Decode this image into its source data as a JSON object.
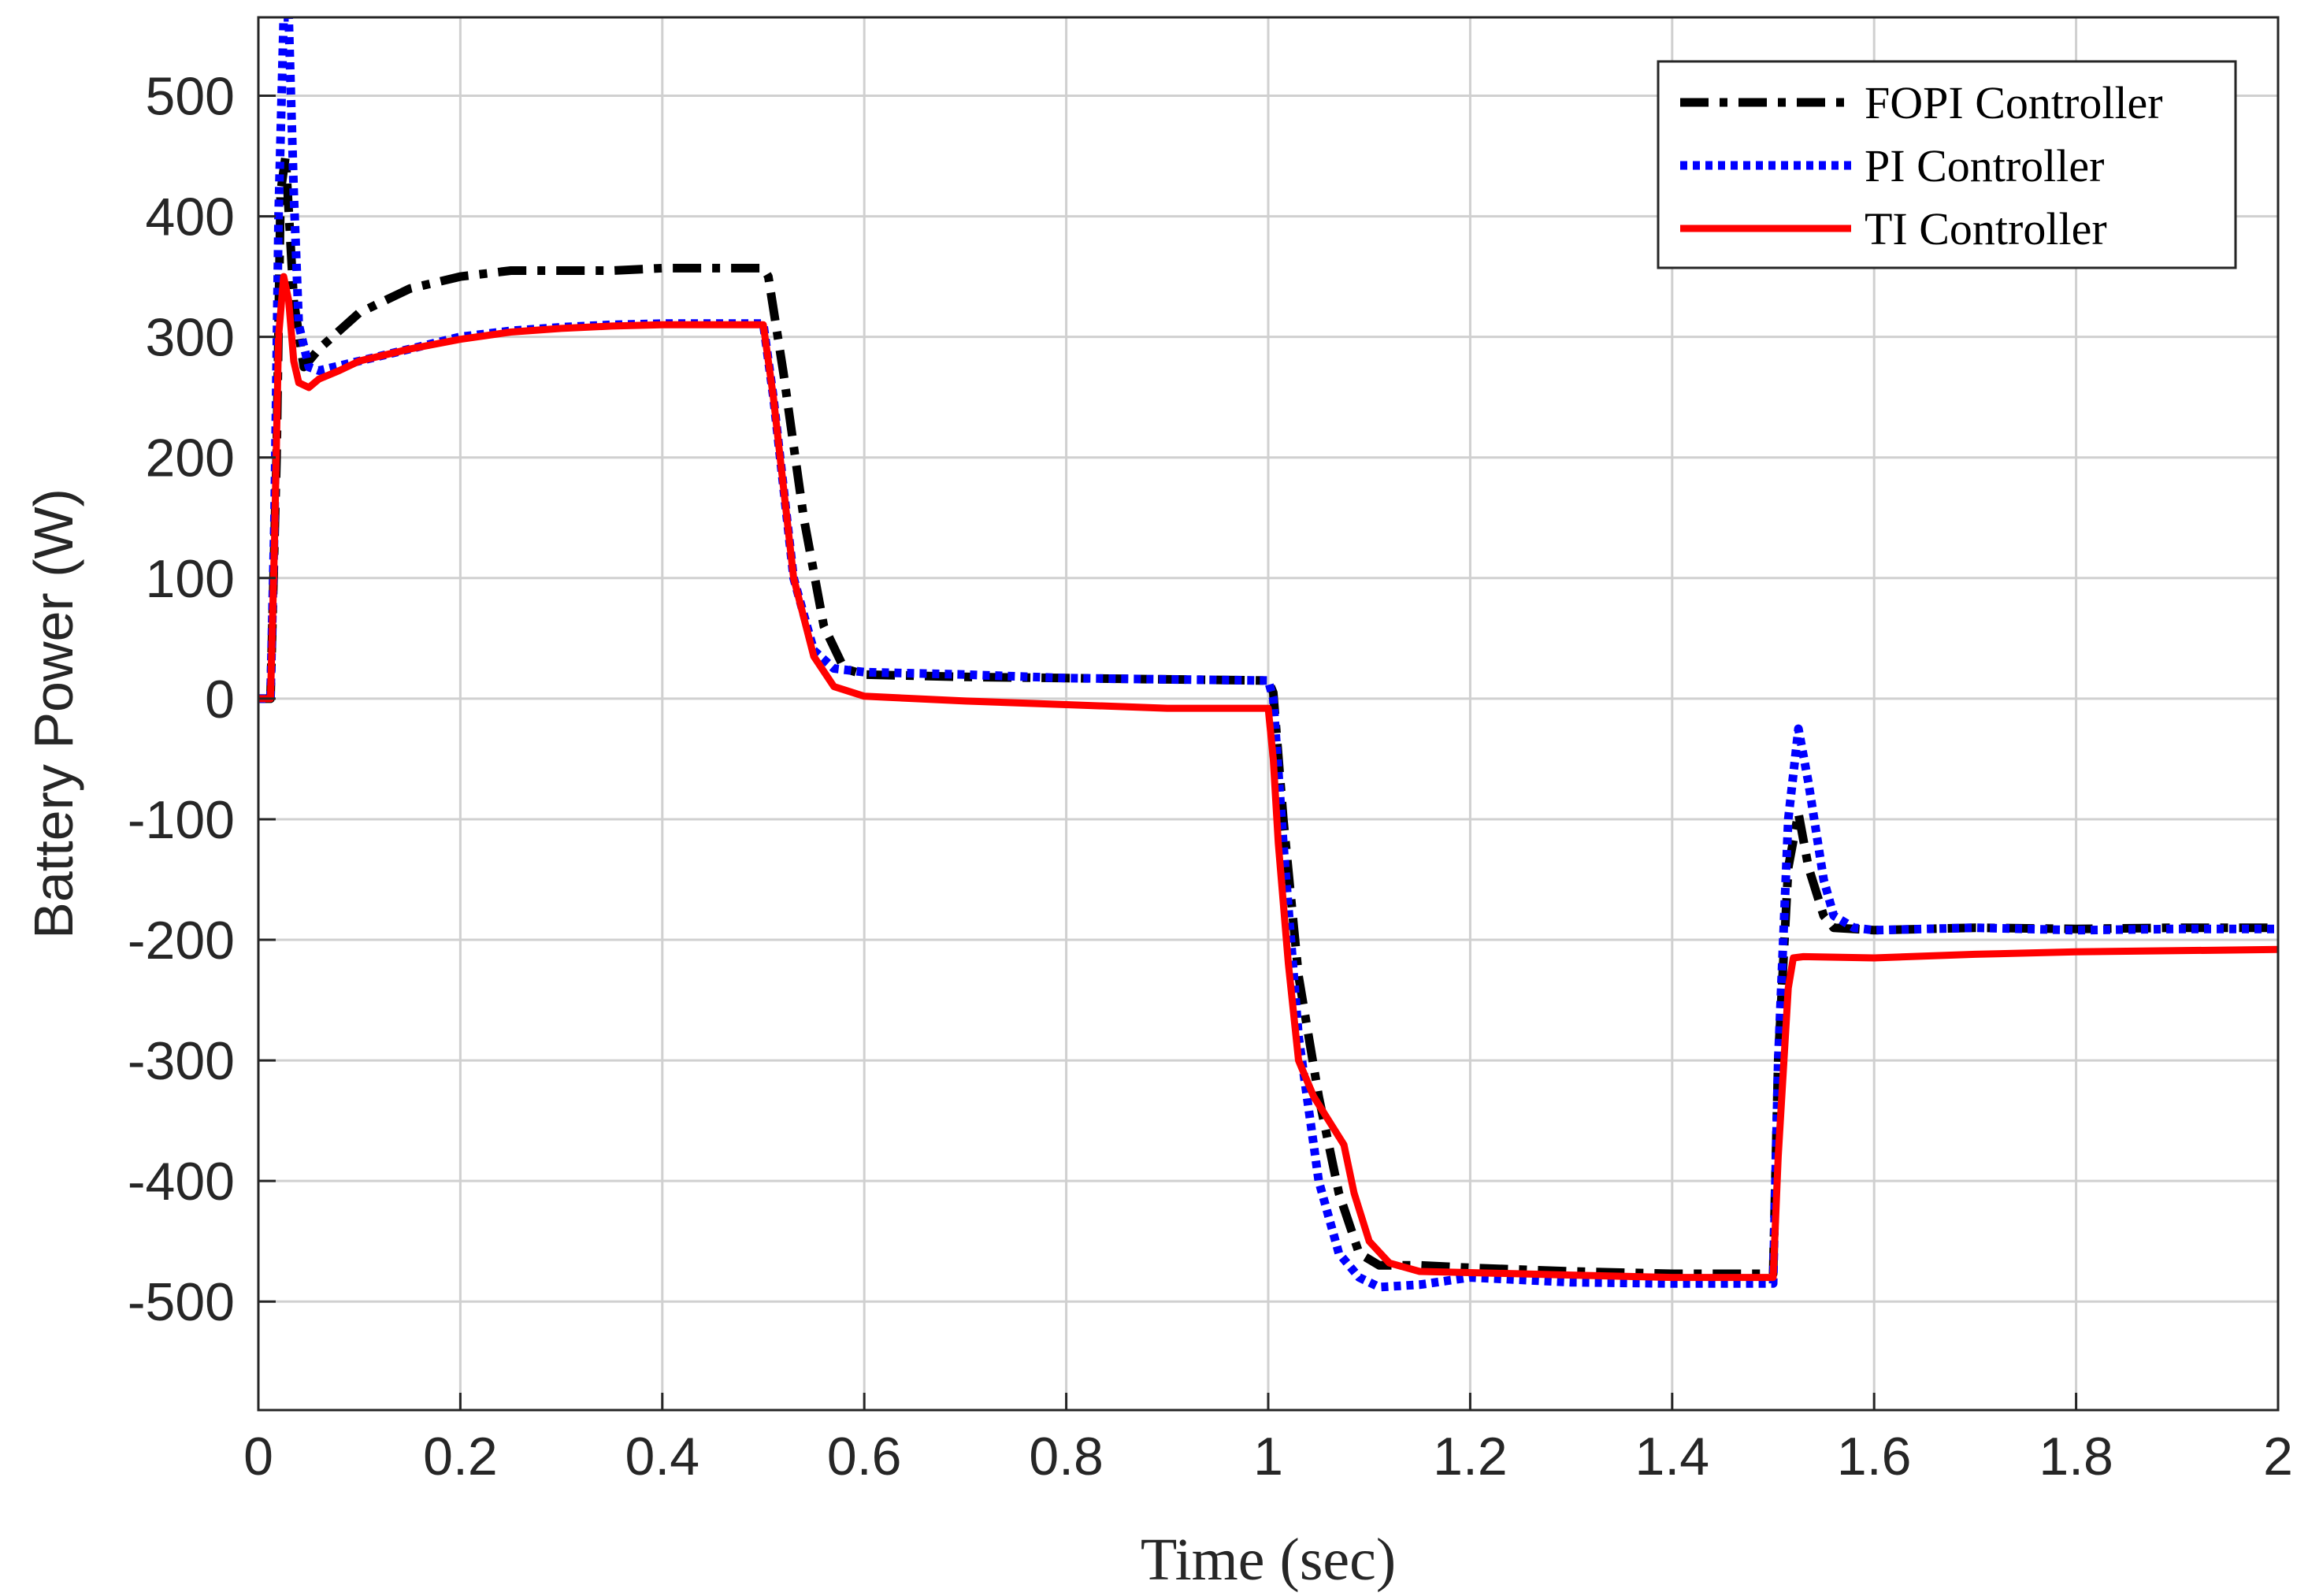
{
  "chart_data": {
    "type": "line",
    "title": "",
    "xlabel": "Time (sec)",
    "ylabel": "Battery Power (W)",
    "xlim": [
      0,
      2
    ],
    "ylim": [
      -590,
      565
    ],
    "x_ticks": [
      0,
      0.2,
      0.4,
      0.6,
      0.8,
      1,
      1.2,
      1.4,
      1.6,
      1.8,
      2
    ],
    "x_tick_labels": [
      "0",
      "0.2",
      "0.4",
      "0.6",
      "0.8",
      "1",
      "1.2",
      "1.4",
      "1.6",
      "1.8",
      "2"
    ],
    "y_ticks": [
      -500,
      -400,
      -300,
      -200,
      -100,
      0,
      100,
      200,
      300,
      400,
      500
    ],
    "y_tick_labels": [
      "-500",
      "-400",
      "-300",
      "-200",
      "-100",
      "0",
      "100",
      "200",
      "300",
      "400",
      "500"
    ],
    "grid": true,
    "legend_position": "top-right",
    "series": [
      {
        "name": "FOPI Controller",
        "color": "#000000",
        "style": "dashdot",
        "x": [
          0,
          0.012,
          0.018,
          0.022,
          0.027,
          0.035,
          0.045,
          0.06,
          0.1,
          0.15,
          0.2,
          0.25,
          0.3,
          0.35,
          0.4,
          0.45,
          0.5,
          0.505,
          0.52,
          0.54,
          0.56,
          0.58,
          0.6,
          0.7,
          0.8,
          0.9,
          1.0,
          1.005,
          1.015,
          1.03,
          1.05,
          1.07,
          1.09,
          1.11,
          1.15,
          1.2,
          1.3,
          1.4,
          1.5,
          1.505,
          1.515,
          1.525,
          1.535,
          1.55,
          1.56,
          1.6,
          1.7,
          1.8,
          1.9,
          2.0
        ],
        "y": [
          0,
          0,
          200,
          420,
          450,
          330,
          275,
          290,
          320,
          340,
          350,
          355,
          355,
          355,
          357,
          357,
          357,
          350,
          270,
          150,
          60,
          25,
          20,
          18,
          17,
          16,
          15,
          5,
          -100,
          -230,
          -330,
          -410,
          -460,
          -470,
          -470,
          -472,
          -475,
          -477,
          -477,
          -300,
          -140,
          -95,
          -140,
          -180,
          -190,
          -192,
          -190,
          -191,
          -190,
          -190
        ]
      },
      {
        "name": "PI Controller",
        "color": "#0000ff",
        "style": "dotted",
        "x": [
          0,
          0.012,
          0.016,
          0.02,
          0.025,
          0.03,
          0.035,
          0.04,
          0.05,
          0.06,
          0.1,
          0.15,
          0.2,
          0.25,
          0.3,
          0.35,
          0.4,
          0.45,
          0.5,
          0.51,
          0.53,
          0.55,
          0.57,
          0.6,
          0.7,
          0.8,
          0.9,
          1.0,
          1.005,
          1.015,
          1.03,
          1.05,
          1.07,
          1.09,
          1.11,
          1.15,
          1.2,
          1.3,
          1.4,
          1.5,
          1.505,
          1.515,
          1.525,
          1.535,
          1.55,
          1.56,
          1.58,
          1.6,
          1.7,
          1.8,
          1.9,
          2.0
        ],
        "y": [
          0,
          0,
          150,
          400,
          565,
          565,
          420,
          310,
          275,
          272,
          280,
          290,
          300,
          305,
          308,
          310,
          311,
          311,
          311,
          250,
          100,
          40,
          25,
          22,
          20,
          17,
          16,
          15,
          0,
          -120,
          -280,
          -400,
          -460,
          -480,
          -488,
          -486,
          -480,
          -484,
          -485,
          -485,
          -300,
          -100,
          -25,
          -70,
          -150,
          -180,
          -190,
          -192,
          -190,
          -192,
          -191,
          -191
        ]
      },
      {
        "name": "TI Controller",
        "color": "#ff0000",
        "style": "solid",
        "x": [
          0,
          0.012,
          0.016,
          0.02,
          0.025,
          0.03,
          0.035,
          0.04,
          0.05,
          0.06,
          0.08,
          0.1,
          0.15,
          0.2,
          0.25,
          0.3,
          0.35,
          0.4,
          0.45,
          0.5,
          0.51,
          0.53,
          0.55,
          0.57,
          0.6,
          0.7,
          0.8,
          0.9,
          1.0,
          1.005,
          1.01,
          1.02,
          1.03,
          1.045,
          1.06,
          1.075,
          1.085,
          1.1,
          1.12,
          1.15,
          1.2,
          1.3,
          1.4,
          1.5,
          1.505,
          1.515,
          1.52,
          1.53,
          1.6,
          1.7,
          1.8,
          1.9,
          2.0
        ],
        "y": [
          0,
          0,
          130,
          300,
          350,
          330,
          280,
          262,
          258,
          265,
          272,
          280,
          290,
          298,
          304,
          307,
          309,
          310,
          310,
          310,
          250,
          100,
          35,
          10,
          2,
          -2,
          -5,
          -8,
          -8,
          -50,
          -120,
          -220,
          -300,
          -330,
          -350,
          -370,
          -410,
          -450,
          -468,
          -475,
          -476,
          -478,
          -480,
          -480,
          -380,
          -240,
          -215,
          -214,
          -215,
          -212,
          -210,
          -209,
          -208
        ]
      }
    ]
  }
}
